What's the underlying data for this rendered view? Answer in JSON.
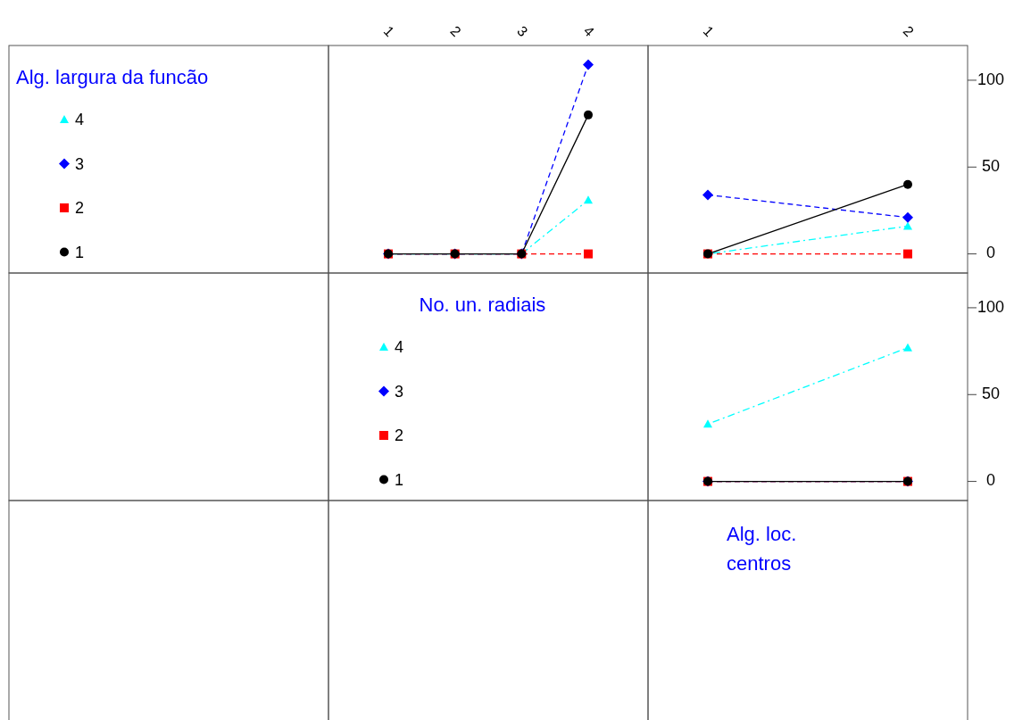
{
  "chart_data": [
    {
      "type": "line",
      "categories": [
        "1",
        "2",
        "3",
        "4"
      ],
      "ylim": [
        -11,
        120
      ],
      "tick_labels": "x",
      "legend": "left",
      "legend_title": "Alg. largura da funcão",
      "series": [
        {
          "name": "4",
          "color": "#00ffff",
          "marker": "triangle",
          "line_style": "dotted",
          "values": [
            0,
            0,
            0,
            31
          ]
        },
        {
          "name": "3",
          "color": "#0000ff",
          "marker": "diamond",
          "line_style": "dashed",
          "values": [
            0,
            0,
            0,
            109
          ]
        },
        {
          "name": "2",
          "color": "#ff0000",
          "marker": "square",
          "line_style": "dashed",
          "values": [
            0,
            0,
            0,
            0
          ]
        },
        {
          "name": "1",
          "color": "#000000",
          "marker": "circle",
          "line_style": "solid",
          "values": [
            0,
            0,
            0,
            80
          ]
        }
      ]
    },
    {
      "type": "line",
      "categories": [
        "1",
        "2"
      ],
      "ylim": [
        -11,
        120
      ],
      "yticks": [
        0,
        50,
        100
      ],
      "series": [
        {
          "color": "#00ffff",
          "marker": "triangle",
          "line_style": "dotted",
          "values": [
            0,
            16
          ]
        },
        {
          "color": "#0000ff",
          "marker": "diamond",
          "line_style": "dashed",
          "values": [
            34,
            21
          ]
        },
        {
          "color": "#ff0000",
          "marker": "square",
          "line_style": "dashed",
          "values": [
            0,
            0
          ]
        },
        {
          "color": "#000000",
          "marker": "circle",
          "line_style": "solid",
          "values": [
            0,
            40
          ]
        }
      ]
    },
    {
      "type": "line",
      "categories": [
        null,
        null
      ],
      "ylim": [
        -11,
        120
      ],
      "yticks": [
        0,
        50,
        100
      ],
      "tick_labels": "y",
      "legend": "left",
      "legend_title": "No. un. radiais",
      "series": [
        {
          "name": "4",
          "color": "#00ffff",
          "marker": "triangle",
          "line_style": "dotted",
          "values": [
            33,
            77
          ]
        },
        {
          "name": "3",
          "color": "#0000ff",
          "marker": "diamond",
          "line_style": "dashed",
          "values": [
            0,
            0
          ]
        },
        {
          "name": "2",
          "color": "#ff0000",
          "marker": "square",
          "line_style": "dashed",
          "values": [
            0,
            0
          ]
        },
        {
          "name": "1",
          "color": "#000000",
          "marker": "circle",
          "line_style": "solid",
          "values": [
            0,
            0
          ]
        }
      ]
    },
    {
      "type": "other",
      "title": "Alg. loc.\ncentros"
    }
  ]
}
